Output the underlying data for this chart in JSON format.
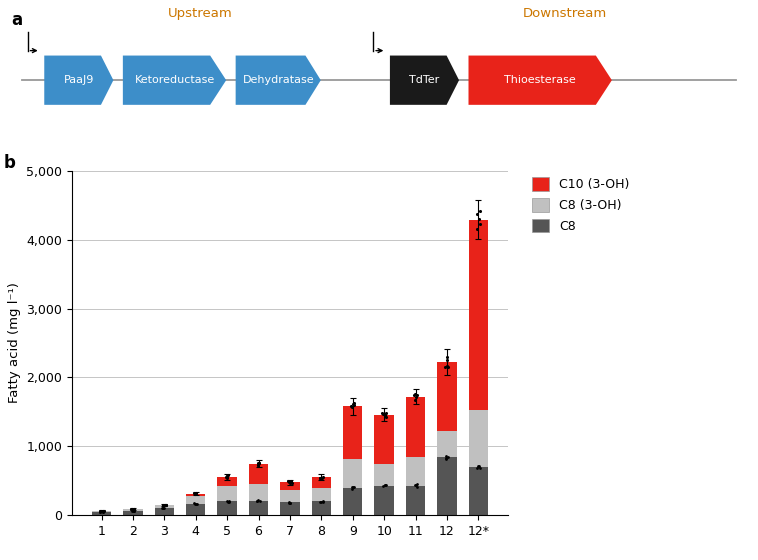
{
  "strains": [
    "1",
    "2",
    "3",
    "4",
    "5",
    "6",
    "7",
    "8",
    "9",
    "10",
    "11",
    "12",
    "12*"
  ],
  "C8": [
    45,
    65,
    110,
    165,
    200,
    210,
    185,
    200,
    400,
    430,
    430,
    840,
    700
  ],
  "C8_3OH": [
    15,
    20,
    35,
    120,
    230,
    240,
    180,
    200,
    420,
    310,
    420,
    380,
    830
  ],
  "C10_3OH": [
    5,
    5,
    5,
    30,
    130,
    300,
    110,
    150,
    760,
    720,
    870,
    1000,
    2760
  ],
  "total_err": [
    8,
    10,
    15,
    22,
    45,
    55,
    38,
    42,
    120,
    95,
    110,
    190,
    280
  ],
  "C8_err": [
    6,
    8,
    10,
    15,
    20,
    25,
    18,
    20,
    45,
    38,
    42,
    80,
    70
  ],
  "C83OH_err": [
    4,
    5,
    7,
    12,
    25,
    28,
    20,
    22,
    45,
    28,
    38,
    45,
    75
  ],
  "ylabel": "Fatty acid (mg l⁻¹)",
  "ylim": [
    0,
    5000
  ],
  "yticks": [
    0,
    1000,
    2000,
    3000,
    4000,
    5000
  ],
  "ytick_labels": [
    "0",
    "1,000",
    "2,000",
    "3,000",
    "4,000",
    "5,000"
  ],
  "color_C10": "#e8231a",
  "color_C8_3OH": "#c0c0c0",
  "color_C8": "#555555",
  "blue_arrow_color": "#3d8ec9",
  "thioesterase_color": "#e8231a",
  "tdter_color": "#1a1a1a",
  "upstream_label": "Upstream",
  "downstream_label": "Downstream",
  "panel_a_label": "a",
  "panel_b_label": "b"
}
